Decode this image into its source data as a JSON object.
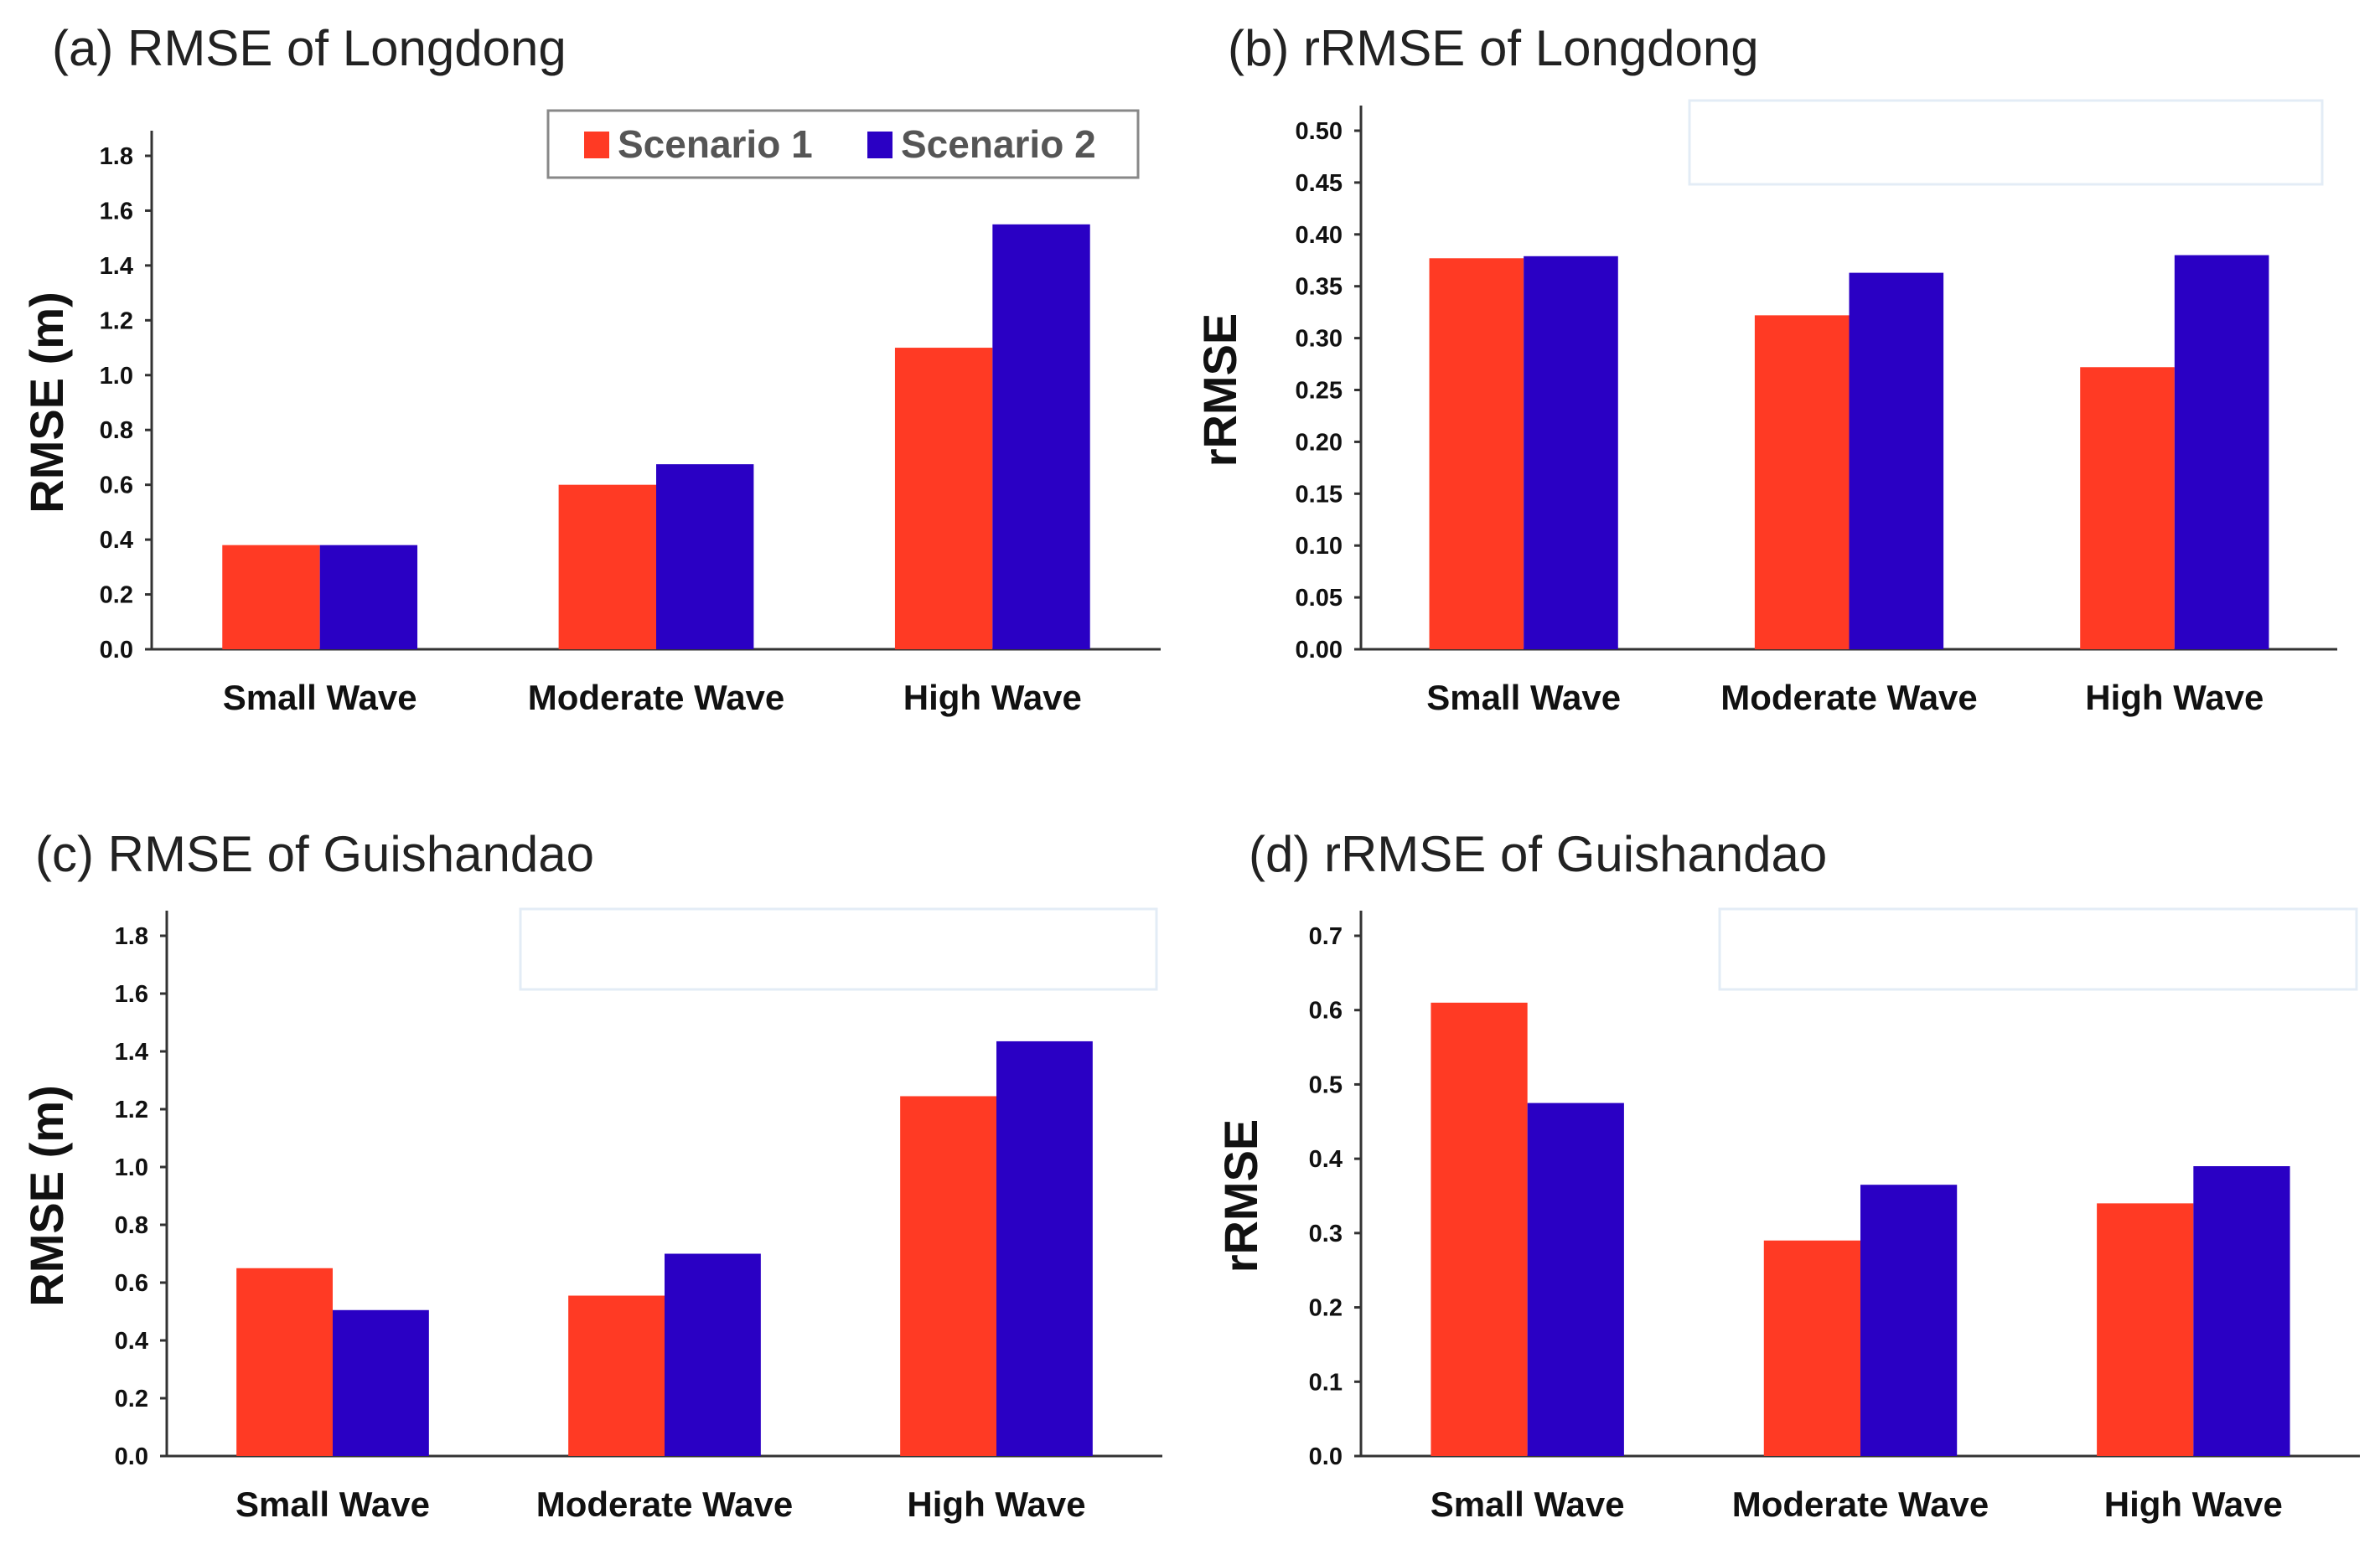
{
  "legend": [
    "Scenario 1",
    "Scenario 2"
  ],
  "colors": {
    "Scenario 1": "#ff3a24",
    "Scenario 2": "#2a00c4"
  },
  "chart_data": [
    {
      "type": "bar",
      "title": "(a) RMSE of Longdong",
      "xlabel": "",
      "ylabel": "RMSE (m)",
      "categories": [
        "Small Wave",
        "Moderate Wave",
        "High Wave"
      ],
      "series": [
        {
          "name": "Scenario 1",
          "values": [
            0.38,
            0.6,
            1.1
          ]
        },
        {
          "name": "Scenario 2",
          "values": [
            0.38,
            0.675,
            1.55
          ]
        }
      ],
      "yticks": [
        "0.0",
        "0.2",
        "0.4",
        "0.6",
        "0.8",
        "1.0",
        "1.2",
        "1.4",
        "1.6",
        "1.8"
      ],
      "ylim": [
        0,
        1.8
      ],
      "legend_position": "top-right"
    },
    {
      "type": "bar",
      "title": "(b) rRMSE of Longdong",
      "xlabel": "",
      "ylabel": "rRMSE",
      "categories": [
        "Small Wave",
        "Moderate Wave",
        "High Wave"
      ],
      "series": [
        {
          "name": "Scenario 1",
          "values": [
            0.377,
            0.322,
            0.272
          ]
        },
        {
          "name": "Scenario 2",
          "values": [
            0.379,
            0.363,
            0.38
          ]
        }
      ],
      "yticks": [
        "0.00",
        "0.05",
        "0.10",
        "0.15",
        "0.20",
        "0.25",
        "0.30",
        "0.35",
        "0.40",
        "0.45",
        "0.50"
      ],
      "ylim": [
        0,
        0.5
      ]
    },
    {
      "type": "bar",
      "title": "(c) RMSE of Guishandao",
      "xlabel": "",
      "ylabel": "RMSE (m)",
      "categories": [
        "Small Wave",
        "Moderate Wave",
        "High Wave"
      ],
      "series": [
        {
          "name": "Scenario 1",
          "values": [
            0.65,
            0.555,
            1.245
          ]
        },
        {
          "name": "Scenario 2",
          "values": [
            0.505,
            0.7,
            1.435
          ]
        }
      ],
      "yticks": [
        "0.0",
        "0.2",
        "0.4",
        "0.6",
        "0.8",
        "1.0",
        "1.2",
        "1.4",
        "1.6",
        "1.8"
      ],
      "ylim": [
        0,
        1.8
      ]
    },
    {
      "type": "bar",
      "title": "(d) rRMSE of Guishandao",
      "xlabel": "",
      "ylabel": "rRMSE",
      "categories": [
        "Small Wave",
        "Moderate Wave",
        "High Wave"
      ],
      "series": [
        {
          "name": "Scenario 1",
          "values": [
            0.61,
            0.29,
            0.34
          ]
        },
        {
          "name": "Scenario 2",
          "values": [
            0.475,
            0.365,
            0.39
          ]
        }
      ],
      "yticks": [
        "0.0",
        "0.1",
        "0.2",
        "0.3",
        "0.4",
        "0.5",
        "0.6",
        "0.7"
      ],
      "ylim": [
        0,
        0.7
      ]
    }
  ]
}
